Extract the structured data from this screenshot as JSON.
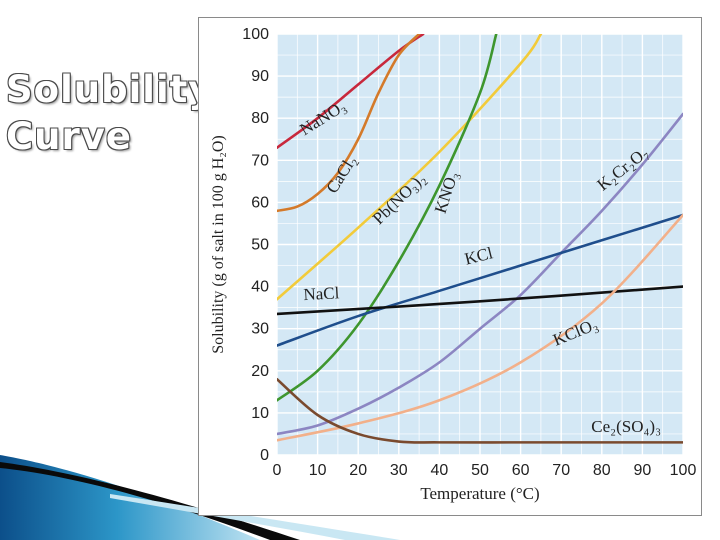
{
  "slide": {
    "title_line1": "Solubility",
    "title_line2": "Curve"
  },
  "colors": {
    "grid_bg": "#d4e8f5",
    "gridline": "#ffffff",
    "axis_text": "#222222"
  },
  "chart_data": {
    "type": "line",
    "title": "Solubility Curve",
    "xlabel": "Temperature (°C)",
    "ylabel": "Solubility (g of salt in 100 g H₂O)",
    "xlim": [
      0,
      100
    ],
    "ylim": [
      0,
      100
    ],
    "xticks": [
      0,
      10,
      20,
      30,
      40,
      50,
      60,
      70,
      80,
      90,
      100
    ],
    "yticks": [
      0,
      10,
      20,
      30,
      40,
      50,
      60,
      70,
      80,
      90,
      100
    ],
    "grid": true,
    "series": [
      {
        "name": "NaNO₃",
        "label": "NaNO₃",
        "color": "#c8283c",
        "x": [
          0,
          10,
          20,
          30,
          36
        ],
        "y": [
          73,
          80,
          88,
          96,
          100
        ]
      },
      {
        "name": "CaCl₂",
        "label": "CaCl₂",
        "color": "#d47a2a",
        "x": [
          0,
          5,
          10,
          15,
          20,
          25,
          30,
          35
        ],
        "y": [
          58,
          59,
          62,
          67,
          75,
          86,
          95,
          100
        ]
      },
      {
        "name": "Pb(NO₃)₂",
        "label": "Pb(NO₃)₂",
        "color": "#f2cb3a",
        "x": [
          0,
          20,
          40,
          60,
          65
        ],
        "y": [
          37,
          54,
          72,
          93,
          100
        ]
      },
      {
        "name": "KNO₃",
        "label": "KNO₃",
        "color": "#3e962e",
        "x": [
          0,
          10,
          20,
          30,
          40,
          50,
          54
        ],
        "y": [
          13,
          20,
          31,
          46,
          64,
          86,
          100
        ]
      },
      {
        "name": "K₂Cr₂O₇",
        "label": "K₂Cr₂O₇",
        "color": "#8c86c2",
        "x": [
          0,
          10,
          20,
          30,
          40,
          50,
          60,
          70,
          80,
          90,
          100
        ],
        "y": [
          5,
          7,
          11,
          16,
          22,
          30,
          38,
          48,
          58,
          69,
          81
        ]
      },
      {
        "name": "KCl",
        "label": "KCl",
        "color": "#1f4e8c",
        "x": [
          0,
          20,
          40,
          60,
          80,
          100
        ],
        "y": [
          26,
          33,
          39,
          45,
          51,
          57
        ]
      },
      {
        "name": "NaCl",
        "label": "NaCl",
        "color": "#111111",
        "x": [
          0,
          50,
          100
        ],
        "y": [
          33.5,
          36.5,
          40
        ]
      },
      {
        "name": "KClO₃",
        "label": "KClO₃",
        "color": "#f2b08a",
        "x": [
          0,
          20,
          40,
          60,
          80,
          100
        ],
        "y": [
          3.5,
          7.5,
          13,
          22,
          36,
          57
        ]
      },
      {
        "name": "Ce₂(SO₄)₃",
        "label": "Ce₂(SO₄)₃",
        "color": "#7a4a2e",
        "x": [
          0,
          10,
          20,
          30,
          40,
          60,
          80,
          100
        ],
        "y": [
          18,
          9.5,
          5,
          3.2,
          3,
          3,
          3,
          3
        ]
      }
    ]
  }
}
